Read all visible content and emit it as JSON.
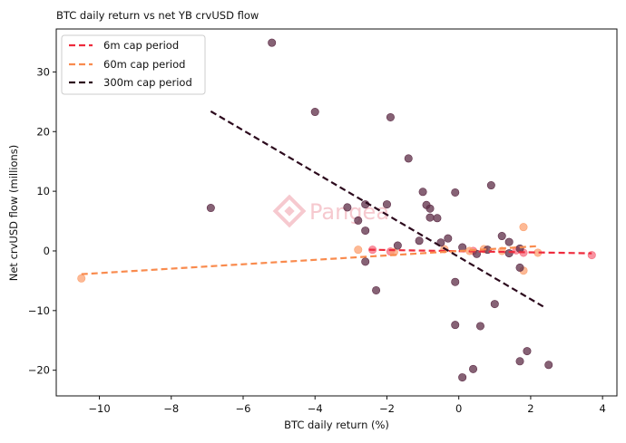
{
  "chart_data": {
    "type": "scatter",
    "title": "BTC daily return vs net YB crvUSD flow",
    "xlabel": "BTC daily return (%)",
    "ylabel": "Net crvUSD flow (millions)",
    "xlim": [
      -11.2,
      4.4
    ],
    "ylim": [
      -24.3,
      37.2
    ],
    "xticks": [
      -10,
      -8,
      -6,
      -4,
      -2,
      0,
      2,
      4
    ],
    "yticks": [
      -20,
      -10,
      0,
      10,
      20,
      30
    ],
    "xtick_labels": [
      "−10",
      "−8",
      "−6",
      "−4",
      "−2",
      "0",
      "2",
      "4"
    ],
    "ytick_labels": [
      "−20",
      "−10",
      "0",
      "10",
      "20",
      "30"
    ],
    "legend_position": "top-left",
    "watermark": "Pangea",
    "series": [
      {
        "name": "6m cap period",
        "point_color": "#f76f82",
        "line_color": "#ee2b3d",
        "points": [
          [
            -2.4,
            0.2
          ],
          [
            -1.9,
            -0.1
          ],
          [
            1.6,
            0.1
          ],
          [
            1.8,
            -0.3
          ],
          [
            3.7,
            -0.7
          ],
          [
            0.4,
            0.0
          ]
        ],
        "fit": [
          [
            -2.5,
            0.2
          ],
          [
            3.7,
            -0.4
          ]
        ]
      },
      {
        "name": "60m cap period",
        "point_color": "#fca271",
        "line_color": "#f98b4e",
        "points": [
          [
            -10.5,
            -4.6
          ],
          [
            -2.8,
            0.2
          ],
          [
            -0.4,
            0.3
          ],
          [
            0.3,
            0.0
          ],
          [
            0.7,
            0.3
          ],
          [
            1.2,
            0.0
          ],
          [
            1.8,
            4.0
          ],
          [
            1.8,
            -3.3
          ],
          [
            2.2,
            -0.3
          ],
          [
            -1.8,
            -0.2
          ]
        ],
        "fit": [
          [
            -10.5,
            -3.9
          ],
          [
            2.2,
            0.8
          ]
        ]
      },
      {
        "name": "300m cap period",
        "point_color": "#5e2d47",
        "line_color": "#2c0a1d",
        "points": [
          [
            -6.9,
            7.2
          ],
          [
            -5.2,
            34.9
          ],
          [
            -4.0,
            23.3
          ],
          [
            -1.9,
            22.4
          ],
          [
            -1.4,
            15.5
          ],
          [
            -1.0,
            9.9
          ],
          [
            -0.9,
            7.7
          ],
          [
            -0.8,
            7.1
          ],
          [
            -0.8,
            5.6
          ],
          [
            -0.6,
            5.5
          ],
          [
            -0.5,
            1.4
          ],
          [
            -0.3,
            2.1
          ],
          [
            -0.1,
            9.8
          ],
          [
            -0.1,
            -5.2
          ],
          [
            -0.1,
            -12.4
          ],
          [
            0.1,
            0.6
          ],
          [
            0.1,
            -21.2
          ],
          [
            0.4,
            -19.8
          ],
          [
            0.6,
            -12.6
          ],
          [
            0.5,
            -0.5
          ],
          [
            0.8,
            0.2
          ],
          [
            0.9,
            11.0
          ],
          [
            1.0,
            -8.9
          ],
          [
            1.2,
            2.5
          ],
          [
            1.4,
            1.5
          ],
          [
            1.4,
            -0.4
          ],
          [
            1.7,
            -2.8
          ],
          [
            1.7,
            -18.5
          ],
          [
            1.9,
            -16.8
          ],
          [
            2.5,
            -19.1
          ],
          [
            -2.8,
            5.1
          ],
          [
            -2.6,
            7.8
          ],
          [
            -2.6,
            3.4
          ],
          [
            -2.6,
            -1.8
          ],
          [
            -2.3,
            -6.6
          ],
          [
            -3.1,
            7.3
          ],
          [
            -2.0,
            7.8
          ],
          [
            -1.7,
            0.9
          ],
          [
            -1.1,
            1.7
          ],
          [
            1.7,
            0.4
          ]
        ],
        "fit": [
          [
            -6.9,
            23.4
          ],
          [
            2.4,
            -9.5
          ]
        ]
      }
    ]
  }
}
